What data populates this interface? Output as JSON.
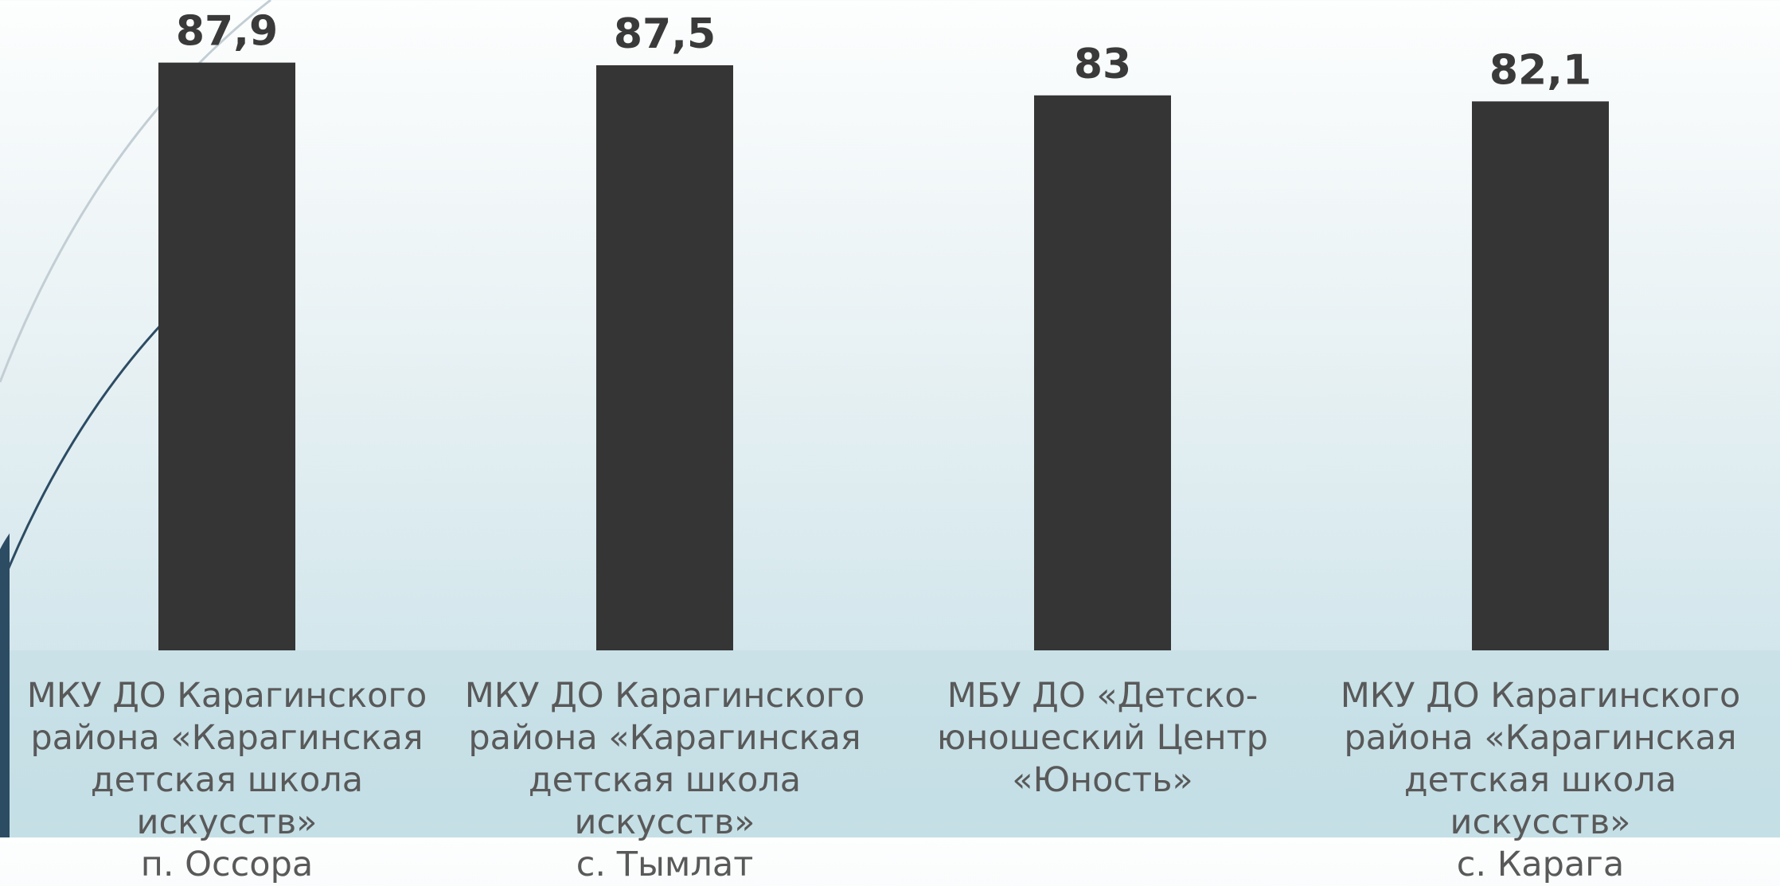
{
  "chart_data": {
    "type": "bar",
    "categories": [
      "МКУ ДО Карагинского\nрайона «Карагинская\nдетская школа искусств»\nп. Оссора",
      "МКУ ДО Карагинского\nрайона «Карагинская\nдетская школа искусств»\nс. Тымлат",
      "МБУ ДО «Детско-\nюношеский Центр\n«Юность»",
      "МКУ ДО Карагинского\nрайона «Карагинская\nдетская школа искусств»\nс. Карага"
    ],
    "values": [
      87.9,
      87.5,
      83,
      82.1
    ],
    "value_labels": [
      "87,9",
      "87,5",
      "83",
      "82,1"
    ],
    "color": "#353535",
    "ylim": [
      0,
      100
    ]
  }
}
